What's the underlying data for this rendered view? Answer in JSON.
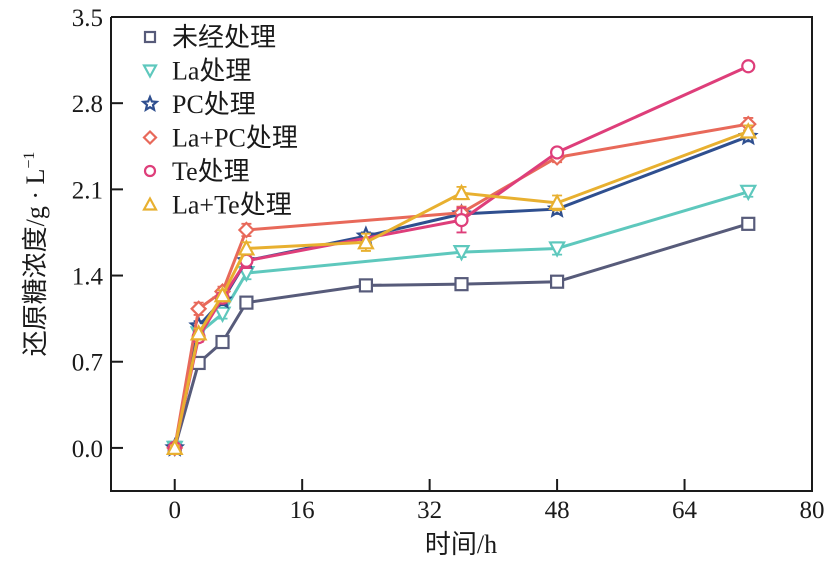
{
  "chart_data": {
    "type": "line",
    "title": "",
    "xlabel": "时间/h",
    "ylabel": "还原糖浓度/g · L",
    "ylabel_superscript": "−1",
    "xlim": [
      -8,
      80
    ],
    "ylim": [
      -0.35,
      3.5
    ],
    "xticks": [
      0,
      16,
      32,
      48,
      64,
      80
    ],
    "xtick_labels": [
      "0",
      "16",
      "32",
      "48",
      "64",
      "80"
    ],
    "yticks": [
      0.0,
      0.7,
      1.4,
      2.1,
      2.8,
      3.5
    ],
    "ytick_labels": [
      "0.0",
      "0.7",
      "1.4",
      "2.1",
      "2.8",
      "3.5"
    ],
    "grid": false,
    "legend_position": "top-left",
    "x": [
      0,
      3,
      6,
      9,
      24,
      36,
      48,
      72
    ],
    "series": [
      {
        "name": "未经处理",
        "marker": "square",
        "color": "#575b7a",
        "values": [
          0.0,
          0.69,
          0.86,
          1.18,
          1.32,
          1.33,
          1.35,
          1.82
        ],
        "errors": [
          0.02,
          0.02,
          0.02,
          0.03,
          0.02,
          0.02,
          0.02,
          0.03
        ]
      },
      {
        "name": "La处理",
        "marker": "triangle-down",
        "color": "#5ec8bd",
        "values": [
          0.0,
          0.93,
          1.09,
          1.42,
          null,
          1.59,
          1.62,
          2.08
        ],
        "errors": [
          0.02,
          0.03,
          0.04,
          0.05,
          null,
          0.04,
          0.05,
          0.04
        ]
      },
      {
        "name": "PC处理",
        "marker": "star",
        "color": "#2f4f8f",
        "values": [
          0.0,
          0.99,
          1.2,
          1.52,
          1.72,
          1.9,
          1.94,
          2.53
        ],
        "errors": [
          0.02,
          0.04,
          0.04,
          0.03,
          0.03,
          0.04,
          0.04,
          0.04
        ]
      },
      {
        "name": "La+PC处理",
        "marker": "diamond",
        "color": "#e8695a",
        "values": [
          0.0,
          1.13,
          1.27,
          1.77,
          null,
          1.91,
          2.36,
          2.63
        ],
        "errors": [
          0.02,
          0.05,
          0.04,
          0.05,
          null,
          0.05,
          0.04,
          0.05
        ]
      },
      {
        "name": "Te处理",
        "marker": "circle",
        "color": "#de3e7a",
        "values": [
          0.0,
          0.9,
          1.22,
          1.52,
          null,
          1.85,
          2.4,
          3.1
        ],
        "errors": [
          0.02,
          0.04,
          0.04,
          0.06,
          null,
          0.1,
          0.03,
          0.02
        ]
      },
      {
        "name": "La+Te处理",
        "marker": "triangle-up",
        "color": "#e8b030",
        "values": [
          0.0,
          0.93,
          1.24,
          1.62,
          1.67,
          2.07,
          1.99,
          2.57
        ],
        "errors": [
          0.02,
          0.04,
          0.04,
          0.05,
          0.07,
          0.05,
          0.06,
          0.05
        ]
      }
    ]
  }
}
